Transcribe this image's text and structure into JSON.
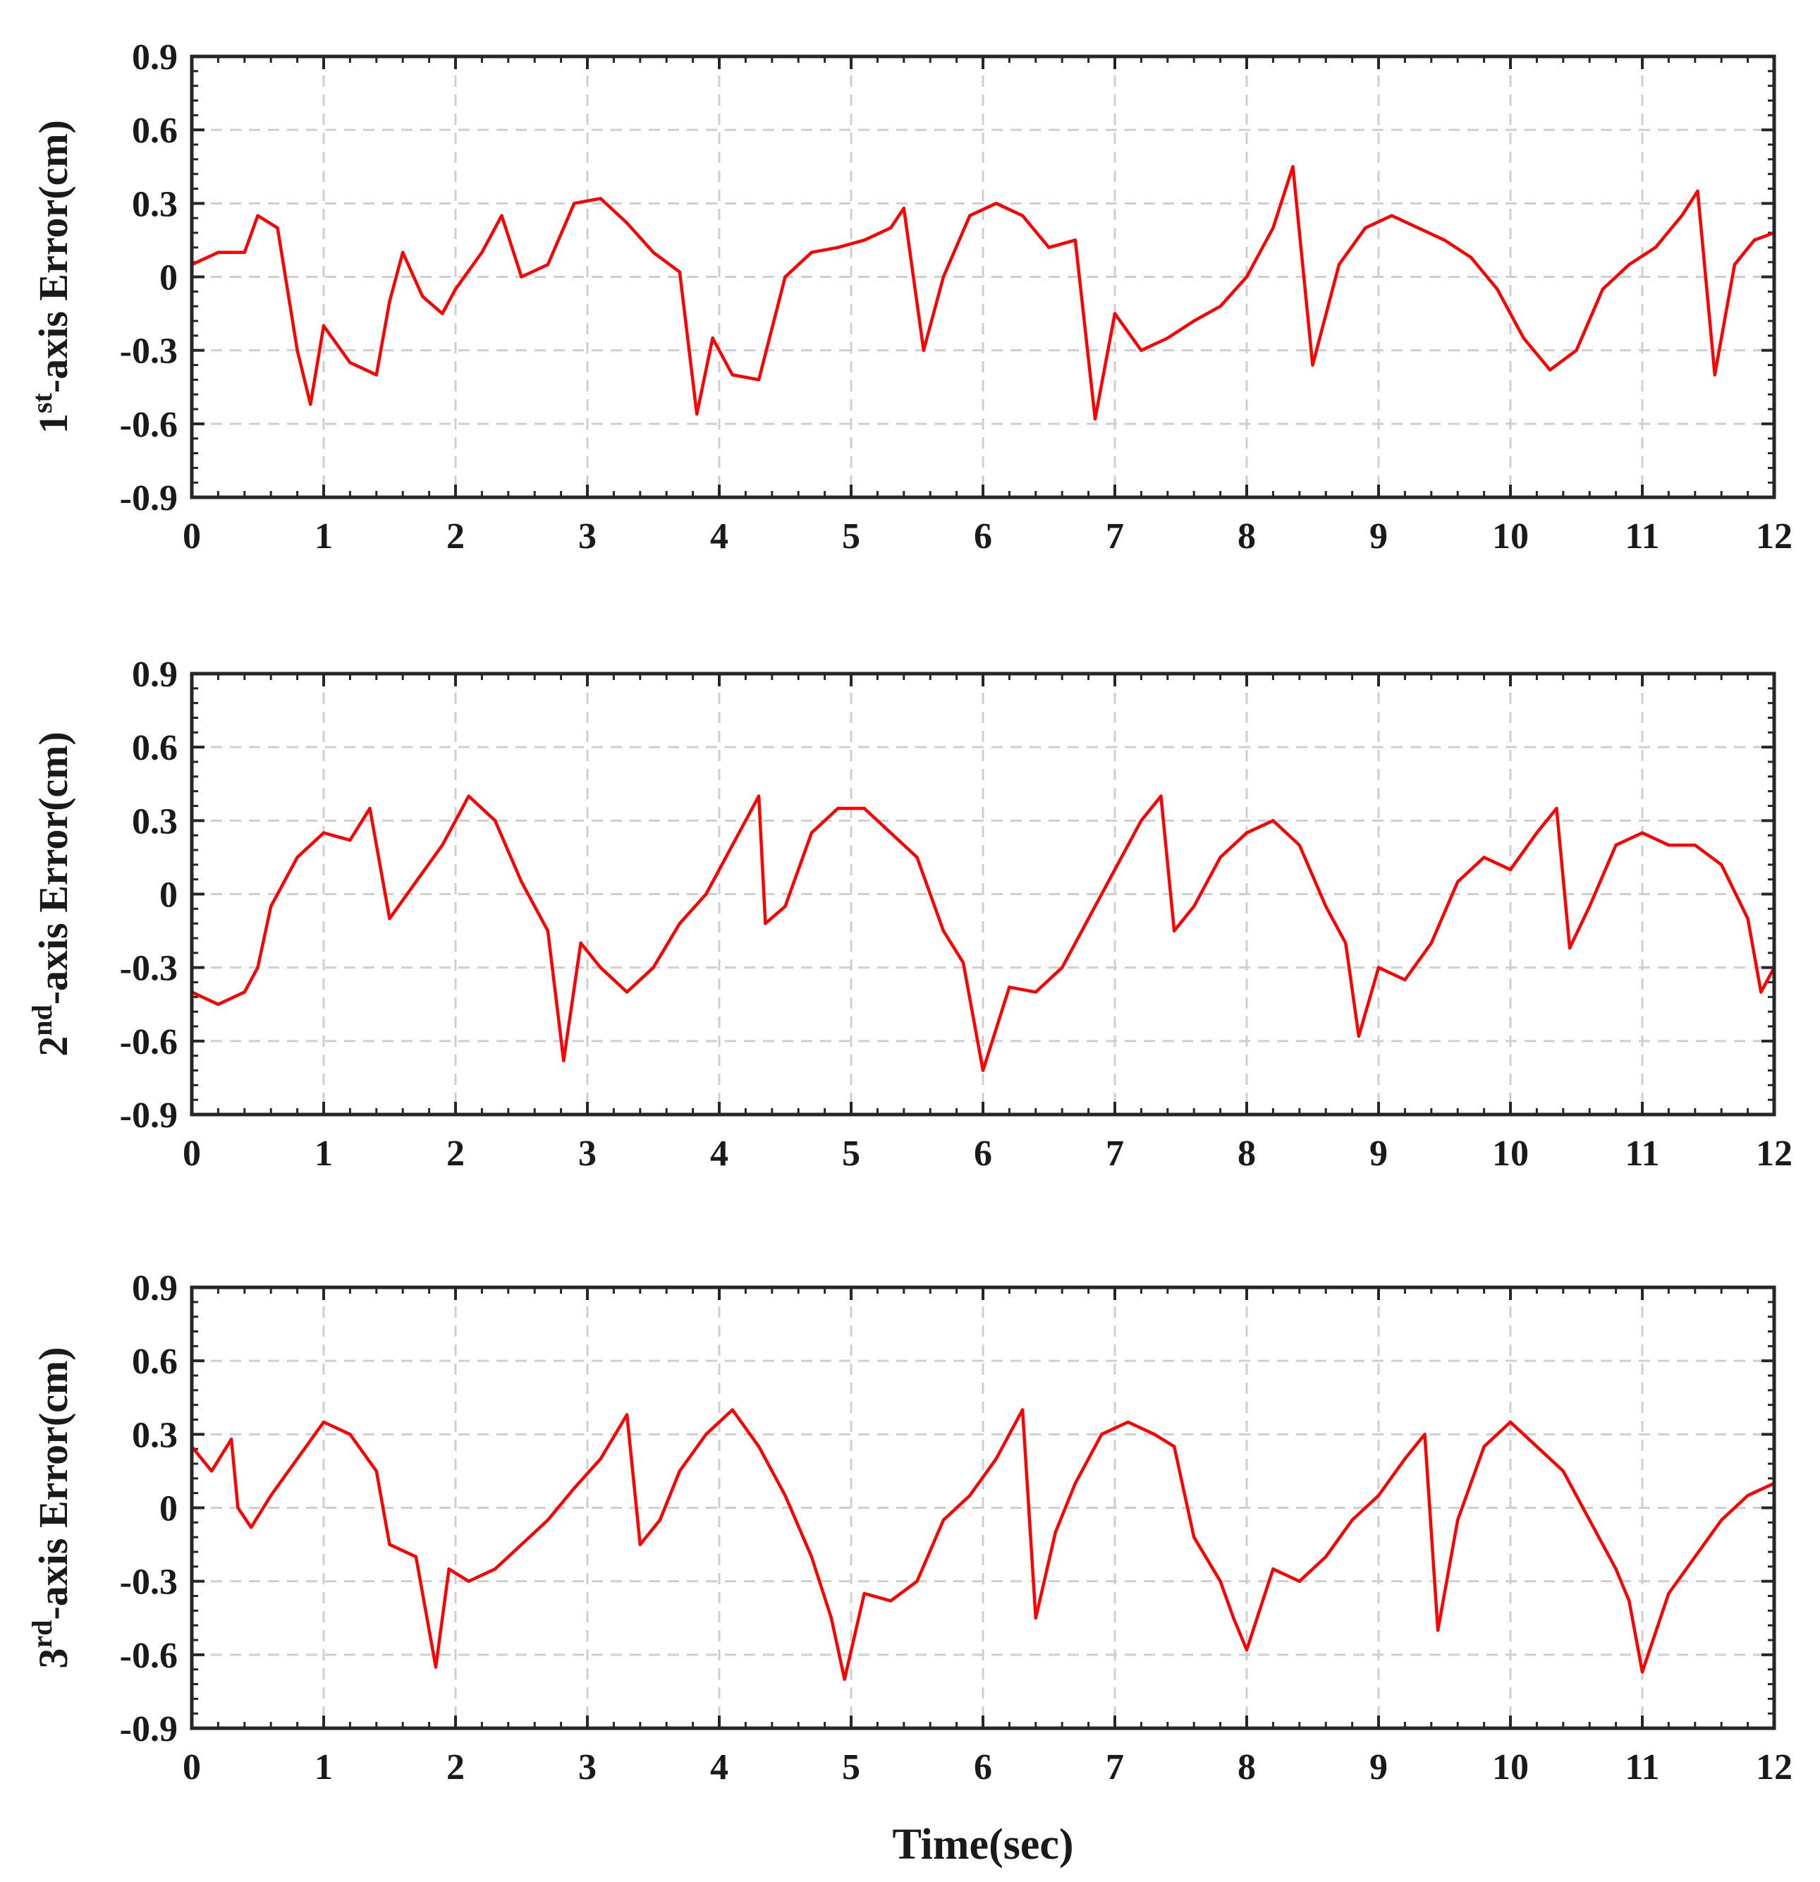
{
  "chart_data": [
    {
      "type": "line",
      "ylabel": {
        "prefix": "1",
        "sup": "st",
        "suffix": "-axis Error(cm)"
      },
      "xlabel": "",
      "xlim": [
        0,
        12
      ],
      "ylim": [
        -0.9,
        0.9
      ],
      "xticks": [
        0,
        1,
        2,
        3,
        4,
        5,
        6,
        7,
        8,
        9,
        10,
        11,
        12
      ],
      "xtick_labels": [
        "0",
        "1",
        "2",
        "3",
        "4",
        "5",
        "6",
        "7",
        "8",
        "9",
        "10",
        "11",
        "12"
      ],
      "yticks": [
        -0.9,
        -0.6,
        -0.3,
        0,
        0.3,
        0.6,
        0.9
      ],
      "ytick_labels": [
        "-0.9",
        "-0.6",
        "-0.3",
        "0",
        "0.3",
        "0.6",
        "0.9"
      ],
      "grid": true,
      "series": [
        {
          "name": "1st-axis error",
          "color": "#ff0000",
          "x": [
            0,
            0.2,
            0.4,
            0.5,
            0.65,
            0.8,
            0.9,
            1.0,
            1.2,
            1.4,
            1.5,
            1.6,
            1.75,
            1.9,
            2.0,
            2.2,
            2.35,
            2.5,
            2.7,
            2.9,
            3.1,
            3.3,
            3.5,
            3.7,
            3.83,
            3.95,
            4.1,
            4.3,
            4.5,
            4.7,
            4.9,
            5.1,
            5.3,
            5.4,
            5.55,
            5.7,
            5.9,
            6.1,
            6.3,
            6.5,
            6.7,
            6.85,
            7.0,
            7.2,
            7.4,
            7.6,
            7.8,
            8.0,
            8.2,
            8.35,
            8.5,
            8.7,
            8.9,
            9.1,
            9.3,
            9.5,
            9.7,
            9.9,
            10.1,
            10.3,
            10.5,
            10.7,
            10.9,
            11.1,
            11.3,
            11.42,
            11.55,
            11.7,
            11.85,
            12.0
          ],
          "y": [
            0.05,
            0.1,
            0.1,
            0.25,
            0.2,
            -0.3,
            -0.52,
            -0.2,
            -0.35,
            -0.4,
            -0.1,
            0.1,
            -0.08,
            -0.15,
            -0.05,
            0.1,
            0.25,
            0.0,
            0.05,
            0.3,
            0.32,
            0.22,
            0.1,
            0.02,
            -0.56,
            -0.25,
            -0.4,
            -0.42,
            0.0,
            0.1,
            0.12,
            0.15,
            0.2,
            0.28,
            -0.3,
            0.0,
            0.25,
            0.3,
            0.25,
            0.12,
            0.15,
            -0.58,
            -0.15,
            -0.3,
            -0.25,
            -0.18,
            -0.12,
            0.0,
            0.2,
            0.45,
            -0.36,
            0.05,
            0.2,
            0.25,
            0.2,
            0.15,
            0.08,
            -0.05,
            -0.25,
            -0.38,
            -0.3,
            -0.05,
            0.05,
            0.12,
            0.25,
            0.35,
            -0.4,
            0.05,
            0.15,
            0.18
          ]
        }
      ]
    },
    {
      "type": "line",
      "ylabel": {
        "prefix": "2",
        "sup": "nd",
        "suffix": "-axis Error(cm)"
      },
      "xlabel": "",
      "xlim": [
        0,
        12
      ],
      "ylim": [
        -0.9,
        0.9
      ],
      "xticks": [
        0,
        1,
        2,
        3,
        4,
        5,
        6,
        7,
        8,
        9,
        10,
        11,
        12
      ],
      "xtick_labels": [
        "0",
        "1",
        "2",
        "3",
        "4",
        "5",
        "6",
        "7",
        "8",
        "9",
        "10",
        "11",
        "12"
      ],
      "yticks": [
        -0.9,
        -0.6,
        -0.3,
        0,
        0.3,
        0.6,
        0.9
      ],
      "ytick_labels": [
        "-0.9",
        "-0.6",
        "-0.3",
        "0",
        "0.3",
        "0.6",
        "0.9"
      ],
      "grid": true,
      "series": [
        {
          "name": "2nd-axis error",
          "color": "#ff0000",
          "x": [
            0,
            0.2,
            0.4,
            0.5,
            0.6,
            0.8,
            1.0,
            1.2,
            1.35,
            1.5,
            1.7,
            1.9,
            2.1,
            2.3,
            2.5,
            2.7,
            2.82,
            2.95,
            3.1,
            3.3,
            3.5,
            3.7,
            3.9,
            4.1,
            4.3,
            4.35,
            4.5,
            4.7,
            4.9,
            5.1,
            5.3,
            5.5,
            5.7,
            5.85,
            6.0,
            6.2,
            6.4,
            6.6,
            6.8,
            7.0,
            7.2,
            7.35,
            7.45,
            7.6,
            7.8,
            8.0,
            8.2,
            8.4,
            8.6,
            8.75,
            8.85,
            9.0,
            9.2,
            9.4,
            9.6,
            9.8,
            10.0,
            10.2,
            10.35,
            10.45,
            10.6,
            10.8,
            11.0,
            11.2,
            11.4,
            11.6,
            11.8,
            11.9,
            12.0
          ],
          "y": [
            -0.4,
            -0.45,
            -0.4,
            -0.3,
            -0.05,
            0.15,
            0.25,
            0.22,
            0.35,
            -0.1,
            0.05,
            0.2,
            0.4,
            0.3,
            0.05,
            -0.15,
            -0.68,
            -0.2,
            -0.3,
            -0.4,
            -0.3,
            -0.12,
            0.0,
            0.2,
            0.4,
            -0.12,
            -0.05,
            0.25,
            0.35,
            0.35,
            0.25,
            0.15,
            -0.15,
            -0.28,
            -0.72,
            -0.38,
            -0.4,
            -0.3,
            -0.1,
            0.1,
            0.3,
            0.4,
            -0.15,
            -0.05,
            0.15,
            0.25,
            0.3,
            0.2,
            -0.05,
            -0.2,
            -0.58,
            -0.3,
            -0.35,
            -0.2,
            0.05,
            0.15,
            0.1,
            0.25,
            0.35,
            -0.22,
            -0.05,
            0.2,
            0.25,
            0.2,
            0.2,
            0.12,
            -0.1,
            -0.4,
            -0.3
          ]
        }
      ]
    },
    {
      "type": "line",
      "ylabel": {
        "prefix": "3",
        "sup": "rd",
        "suffix": "-axis Error(cm)"
      },
      "xlabel": "Time(sec)",
      "xlim": [
        0,
        12
      ],
      "ylim": [
        -0.9,
        0.9
      ],
      "xticks": [
        0,
        1,
        2,
        3,
        4,
        5,
        6,
        7,
        8,
        9,
        10,
        11,
        12
      ],
      "xtick_labels": [
        "0",
        "1",
        "2",
        "3",
        "4",
        "5",
        "6",
        "7",
        "8",
        "9",
        "10",
        "11",
        "12"
      ],
      "yticks": [
        -0.9,
        -0.6,
        -0.3,
        0,
        0.3,
        0.6,
        0.9
      ],
      "ytick_labels": [
        "-0.9",
        "-0.6",
        "-0.3",
        "0",
        "0.3",
        "0.6",
        "0.9"
      ],
      "grid": true,
      "series": [
        {
          "name": "3rd-axis error",
          "color": "#ff0000",
          "x": [
            0,
            0.15,
            0.3,
            0.35,
            0.45,
            0.6,
            0.8,
            1.0,
            1.2,
            1.4,
            1.5,
            1.7,
            1.85,
            1.95,
            2.1,
            2.3,
            2.5,
            2.7,
            2.9,
            3.1,
            3.3,
            3.4,
            3.55,
            3.7,
            3.9,
            4.1,
            4.3,
            4.5,
            4.7,
            4.85,
            4.95,
            5.1,
            5.3,
            5.5,
            5.7,
            5.9,
            6.1,
            6.3,
            6.4,
            6.55,
            6.7,
            6.9,
            7.1,
            7.3,
            7.45,
            7.6,
            7.8,
            7.9,
            8.0,
            8.2,
            8.4,
            8.6,
            8.8,
            9.0,
            9.2,
            9.35,
            9.45,
            9.6,
            9.8,
            10.0,
            10.2,
            10.4,
            10.6,
            10.8,
            10.9,
            11.0,
            11.2,
            11.4,
            11.6,
            11.8,
            12.0
          ],
          "y": [
            0.25,
            0.15,
            0.28,
            0.0,
            -0.08,
            0.05,
            0.2,
            0.35,
            0.3,
            0.15,
            -0.15,
            -0.2,
            -0.65,
            -0.25,
            -0.3,
            -0.25,
            -0.15,
            -0.05,
            0.08,
            0.2,
            0.38,
            -0.15,
            -0.05,
            0.15,
            0.3,
            0.4,
            0.25,
            0.05,
            -0.2,
            -0.45,
            -0.7,
            -0.35,
            -0.38,
            -0.3,
            -0.05,
            0.05,
            0.2,
            0.4,
            -0.45,
            -0.1,
            0.1,
            0.3,
            0.35,
            0.3,
            0.25,
            -0.12,
            -0.3,
            -0.45,
            -0.58,
            -0.25,
            -0.3,
            -0.2,
            -0.05,
            0.05,
            0.2,
            0.3,
            -0.5,
            -0.05,
            0.25,
            0.35,
            0.25,
            0.15,
            -0.05,
            -0.25,
            -0.38,
            -0.67,
            -0.35,
            -0.2,
            -0.05,
            0.05,
            0.1
          ]
        }
      ]
    }
  ]
}
